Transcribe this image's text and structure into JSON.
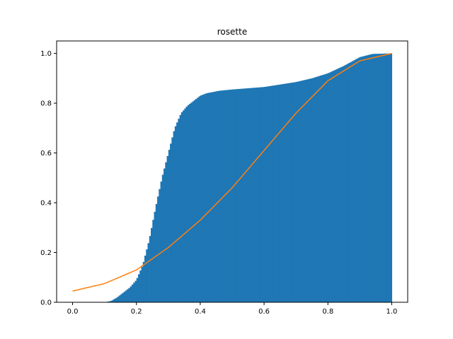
{
  "chart_data": {
    "type": "area",
    "title": "rosette",
    "xlabel": "",
    "ylabel": "",
    "xlim": [
      -0.05,
      1.05
    ],
    "ylim": [
      0.0,
      1.05
    ],
    "xticks": [
      0.0,
      0.2,
      0.4,
      0.6,
      0.8,
      1.0
    ],
    "xtick_labels": [
      "0.0",
      "0.2",
      "0.4",
      "0.6",
      "0.8",
      "1.0"
    ],
    "yticks": [
      0.0,
      0.2,
      0.4,
      0.6,
      0.8,
      1.0
    ],
    "ytick_labels": [
      "0.0",
      "0.2",
      "0.4",
      "0.6",
      "0.8",
      "1.0"
    ],
    "grid": false,
    "legend": "none",
    "colors": {
      "bars": "#1f77b4",
      "line": "#ff7f0e"
    },
    "series": [
      {
        "kind": "cumulative-histogram",
        "x": [
          0.0,
          0.1,
          0.12,
          0.14,
          0.16,
          0.18,
          0.2,
          0.22,
          0.24,
          0.26,
          0.28,
          0.3,
          0.32,
          0.34,
          0.36,
          0.38,
          0.4,
          0.42,
          0.44,
          0.46,
          0.5,
          0.55,
          0.6,
          0.65,
          0.7,
          0.75,
          0.8,
          0.85,
          0.9,
          0.94,
          1.0
        ],
        "y": [
          0.0,
          0.0,
          0.005,
          0.02,
          0.04,
          0.06,
          0.09,
          0.15,
          0.25,
          0.38,
          0.5,
          0.6,
          0.7,
          0.76,
          0.79,
          0.81,
          0.83,
          0.84,
          0.845,
          0.85,
          0.855,
          0.86,
          0.865,
          0.875,
          0.885,
          0.9,
          0.92,
          0.95,
          0.985,
          0.998,
          1.0
        ]
      },
      {
        "kind": "line",
        "x": [
          0.0,
          0.1,
          0.2,
          0.3,
          0.4,
          0.5,
          0.6,
          0.7,
          0.8,
          0.9,
          1.0
        ],
        "y": [
          0.045,
          0.075,
          0.13,
          0.22,
          0.33,
          0.46,
          0.61,
          0.76,
          0.89,
          0.97,
          1.0
        ]
      }
    ]
  }
}
